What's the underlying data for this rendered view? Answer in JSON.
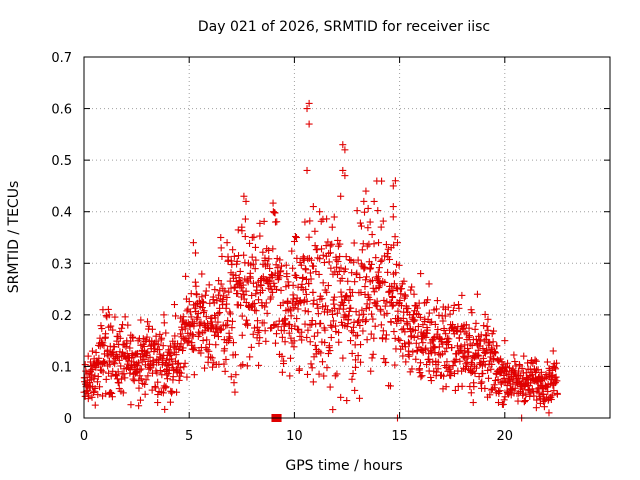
{
  "colors": {
    "series": "#e00000",
    "background": "#ffffff",
    "grid": "#a0a0a0"
  },
  "chart_data": {
    "type": "scatter",
    "title": "Day 021 of 2026, SRMTID for receiver iisc",
    "xlabel": "GPS time / hours",
    "ylabel": "SRMTID / TECUs",
    "xlim": [
      0,
      25
    ],
    "ylim": [
      0,
      0.7
    ],
    "xticks": [
      0,
      5,
      10,
      15,
      20
    ],
    "xtick_labels": [
      "0",
      "5",
      "10",
      "15",
      "20"
    ],
    "yticks": [
      0,
      0.1,
      0.2,
      0.3,
      0.4,
      0.5,
      0.6,
      0.7
    ],
    "ytick_labels": [
      "0",
      "0.1",
      "0.2",
      "0.3",
      "0.4",
      "0.5",
      "0.6",
      "0.7"
    ],
    "grid": true,
    "legend": "none",
    "marker": "plus",
    "series": [
      {
        "name": "SRMTID",
        "color": "#e00000",
        "profile": [
          [
            0.0,
            0.06,
            0.04
          ],
          [
            0.5,
            0.08,
            0.05
          ],
          [
            1.0,
            0.13,
            0.08
          ],
          [
            1.5,
            0.12,
            0.08
          ],
          [
            2.0,
            0.11,
            0.07
          ],
          [
            2.5,
            0.11,
            0.07
          ],
          [
            3.0,
            0.12,
            0.07
          ],
          [
            3.5,
            0.11,
            0.07
          ],
          [
            4.0,
            0.1,
            0.07
          ],
          [
            4.5,
            0.12,
            0.07
          ],
          [
            5.0,
            0.19,
            0.1
          ],
          [
            5.5,
            0.2,
            0.1
          ],
          [
            6.0,
            0.16,
            0.08
          ],
          [
            6.5,
            0.2,
            0.12
          ],
          [
            7.0,
            0.2,
            0.13
          ],
          [
            7.5,
            0.25,
            0.14
          ],
          [
            8.0,
            0.22,
            0.14
          ],
          [
            8.5,
            0.24,
            0.13
          ],
          [
            9.0,
            0.26,
            0.13
          ],
          [
            9.5,
            0.2,
            0.12
          ],
          [
            10.0,
            0.22,
            0.12
          ],
          [
            10.5,
            0.25,
            0.14
          ],
          [
            11.0,
            0.22,
            0.15
          ],
          [
            11.5,
            0.22,
            0.15
          ],
          [
            12.0,
            0.23,
            0.16
          ],
          [
            12.5,
            0.22,
            0.16
          ],
          [
            13.0,
            0.22,
            0.15
          ],
          [
            13.5,
            0.27,
            0.15
          ],
          [
            14.0,
            0.26,
            0.15
          ],
          [
            14.5,
            0.25,
            0.15
          ],
          [
            15.0,
            0.2,
            0.1
          ],
          [
            15.5,
            0.18,
            0.09
          ],
          [
            16.0,
            0.15,
            0.08
          ],
          [
            16.5,
            0.14,
            0.08
          ],
          [
            17.0,
            0.14,
            0.08
          ],
          [
            17.5,
            0.14,
            0.08
          ],
          [
            18.0,
            0.15,
            0.08
          ],
          [
            18.5,
            0.12,
            0.08
          ],
          [
            19.0,
            0.12,
            0.07
          ],
          [
            19.5,
            0.1,
            0.06
          ],
          [
            20.0,
            0.08,
            0.05
          ],
          [
            20.5,
            0.07,
            0.04
          ],
          [
            21.0,
            0.07,
            0.04
          ],
          [
            21.5,
            0.07,
            0.04
          ],
          [
            22.0,
            0.07,
            0.04
          ],
          [
            22.5,
            0.08,
            0.04
          ]
        ],
        "samples_per_hour": 75,
        "peaks": [
          [
            0.2,
            0.12
          ],
          [
            0.9,
            0.21
          ],
          [
            1.2,
            0.2
          ],
          [
            2.7,
            0.19
          ],
          [
            3.8,
            0.2
          ],
          [
            4.3,
            0.22
          ],
          [
            5.2,
            0.34
          ],
          [
            5.3,
            0.32
          ],
          [
            6.5,
            0.35
          ],
          [
            6.8,
            0.34
          ],
          [
            7.5,
            0.37
          ],
          [
            7.6,
            0.43
          ],
          [
            7.7,
            0.42
          ],
          [
            8.0,
            0.35
          ],
          [
            8.6,
            0.31
          ],
          [
            9.0,
            0.4
          ],
          [
            9.1,
            0.38
          ],
          [
            10.1,
            0.35
          ],
          [
            10.5,
            0.38
          ],
          [
            10.6,
            0.6
          ],
          [
            10.7,
            0.61
          ],
          [
            10.7,
            0.57
          ],
          [
            10.6,
            0.48
          ],
          [
            10.9,
            0.41
          ],
          [
            11.2,
            0.4
          ],
          [
            11.8,
            0.37
          ],
          [
            12.3,
            0.53
          ],
          [
            12.4,
            0.52
          ],
          [
            12.3,
            0.48
          ],
          [
            12.4,
            0.47
          ],
          [
            12.2,
            0.43
          ],
          [
            13.3,
            0.42
          ],
          [
            13.4,
            0.44
          ],
          [
            13.6,
            0.38
          ],
          [
            14.0,
            0.34
          ],
          [
            14.7,
            0.45
          ],
          [
            14.8,
            0.46
          ],
          [
            14.7,
            0.41
          ],
          [
            14.7,
            0.39
          ],
          [
            14.9,
            0.34
          ],
          [
            16.0,
            0.28
          ],
          [
            16.4,
            0.26
          ],
          [
            17.8,
            0.22
          ],
          [
            18.4,
            0.21
          ],
          [
            18.7,
            0.24
          ],
          [
            19.2,
            0.17
          ],
          [
            20.0,
            0.15
          ],
          [
            20.9,
            0.12
          ],
          [
            21.5,
            0.11
          ],
          [
            22.3,
            0.1
          ]
        ],
        "lows": [
          [
            3.5,
            0.03
          ],
          [
            4.4,
            0.05
          ],
          [
            7.0,
            0.08
          ],
          [
            10.9,
            0.07
          ],
          [
            11.7,
            0.06
          ],
          [
            12.2,
            0.04
          ],
          [
            14.9,
            0.0
          ],
          [
            18.5,
            0.03
          ],
          [
            19.7,
            0.03
          ],
          [
            20.8,
            0.0
          ],
          [
            21.5,
            0.02
          ],
          [
            22.1,
            0.01
          ],
          [
            0.0,
            0.05
          ]
        ],
        "filled_markers": [
          [
            9.1,
            0.0
          ],
          [
            9.2,
            0.0
          ]
        ]
      }
    ]
  }
}
